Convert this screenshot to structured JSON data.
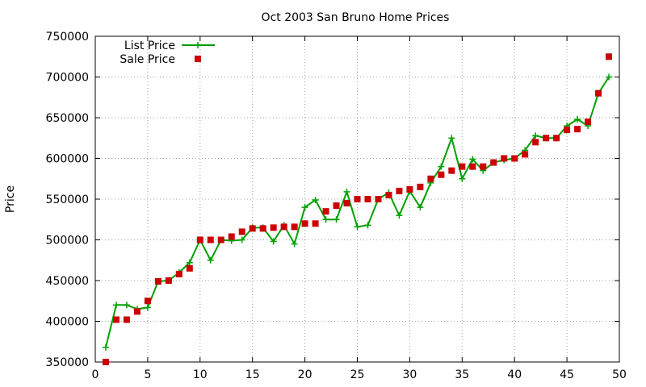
{
  "chart_data": {
    "type": "line",
    "title": "Oct 2003 San Bruno Home Prices",
    "xlabel": "",
    "ylabel": "Price",
    "xlim": [
      0,
      50
    ],
    "ylim": [
      350000,
      750000
    ],
    "x_ticks": [
      "0",
      "5",
      "10",
      "15",
      "20",
      "25",
      "30",
      "35",
      "40",
      "45",
      "50"
    ],
    "y_ticks": [
      "350000",
      "400000",
      "450000",
      "500000",
      "550000",
      "600000",
      "650000",
      "700000",
      "750000"
    ],
    "grid": true,
    "legend_position": "top-left",
    "x": [
      1,
      2,
      3,
      4,
      5,
      6,
      7,
      8,
      9,
      10,
      11,
      12,
      13,
      14,
      15,
      16,
      17,
      18,
      19,
      20,
      21,
      22,
      23,
      24,
      25,
      26,
      27,
      28,
      29,
      30,
      31,
      32,
      33,
      34,
      35,
      36,
      37,
      38,
      39,
      40,
      41,
      42,
      43,
      44,
      45,
      46,
      47,
      48,
      49
    ],
    "series": [
      {
        "name": "List Price",
        "style": "line-plus",
        "color": "#00a000",
        "values": [
          368000,
          420000,
          420000,
          415000,
          417000,
          449000,
          450000,
          460000,
          472000,
          500000,
          475000,
          500000,
          499000,
          500000,
          515000,
          515000,
          498000,
          518000,
          495000,
          540000,
          549000,
          525000,
          525000,
          559000,
          516000,
          518000,
          550000,
          558000,
          530000,
          560000,
          540000,
          570000,
          590000,
          625000,
          575000,
          599000,
          585000,
          595000,
          598000,
          600000,
          610000,
          628000,
          625000,
          625000,
          640000,
          648000,
          640000,
          680000,
          700000
        ]
      },
      {
        "name": "Sale Price",
        "style": "square",
        "color": "#cc0000",
        "values": [
          350000,
          402000,
          402000,
          412000,
          425000,
          449000,
          450000,
          458000,
          465000,
          500000,
          500000,
          500000,
          504000,
          510000,
          514000,
          514000,
          515000,
          516000,
          516000,
          520000,
          520000,
          535000,
          542000,
          545000,
          550000,
          550000,
          550000,
          555000,
          560000,
          562000,
          565000,
          575000,
          580000,
          585000,
          590000,
          590000,
          590000,
          595000,
          600000,
          600000,
          605000,
          620000,
          625000,
          625000,
          635000,
          636000,
          645000,
          680000,
          725000
        ]
      }
    ]
  }
}
